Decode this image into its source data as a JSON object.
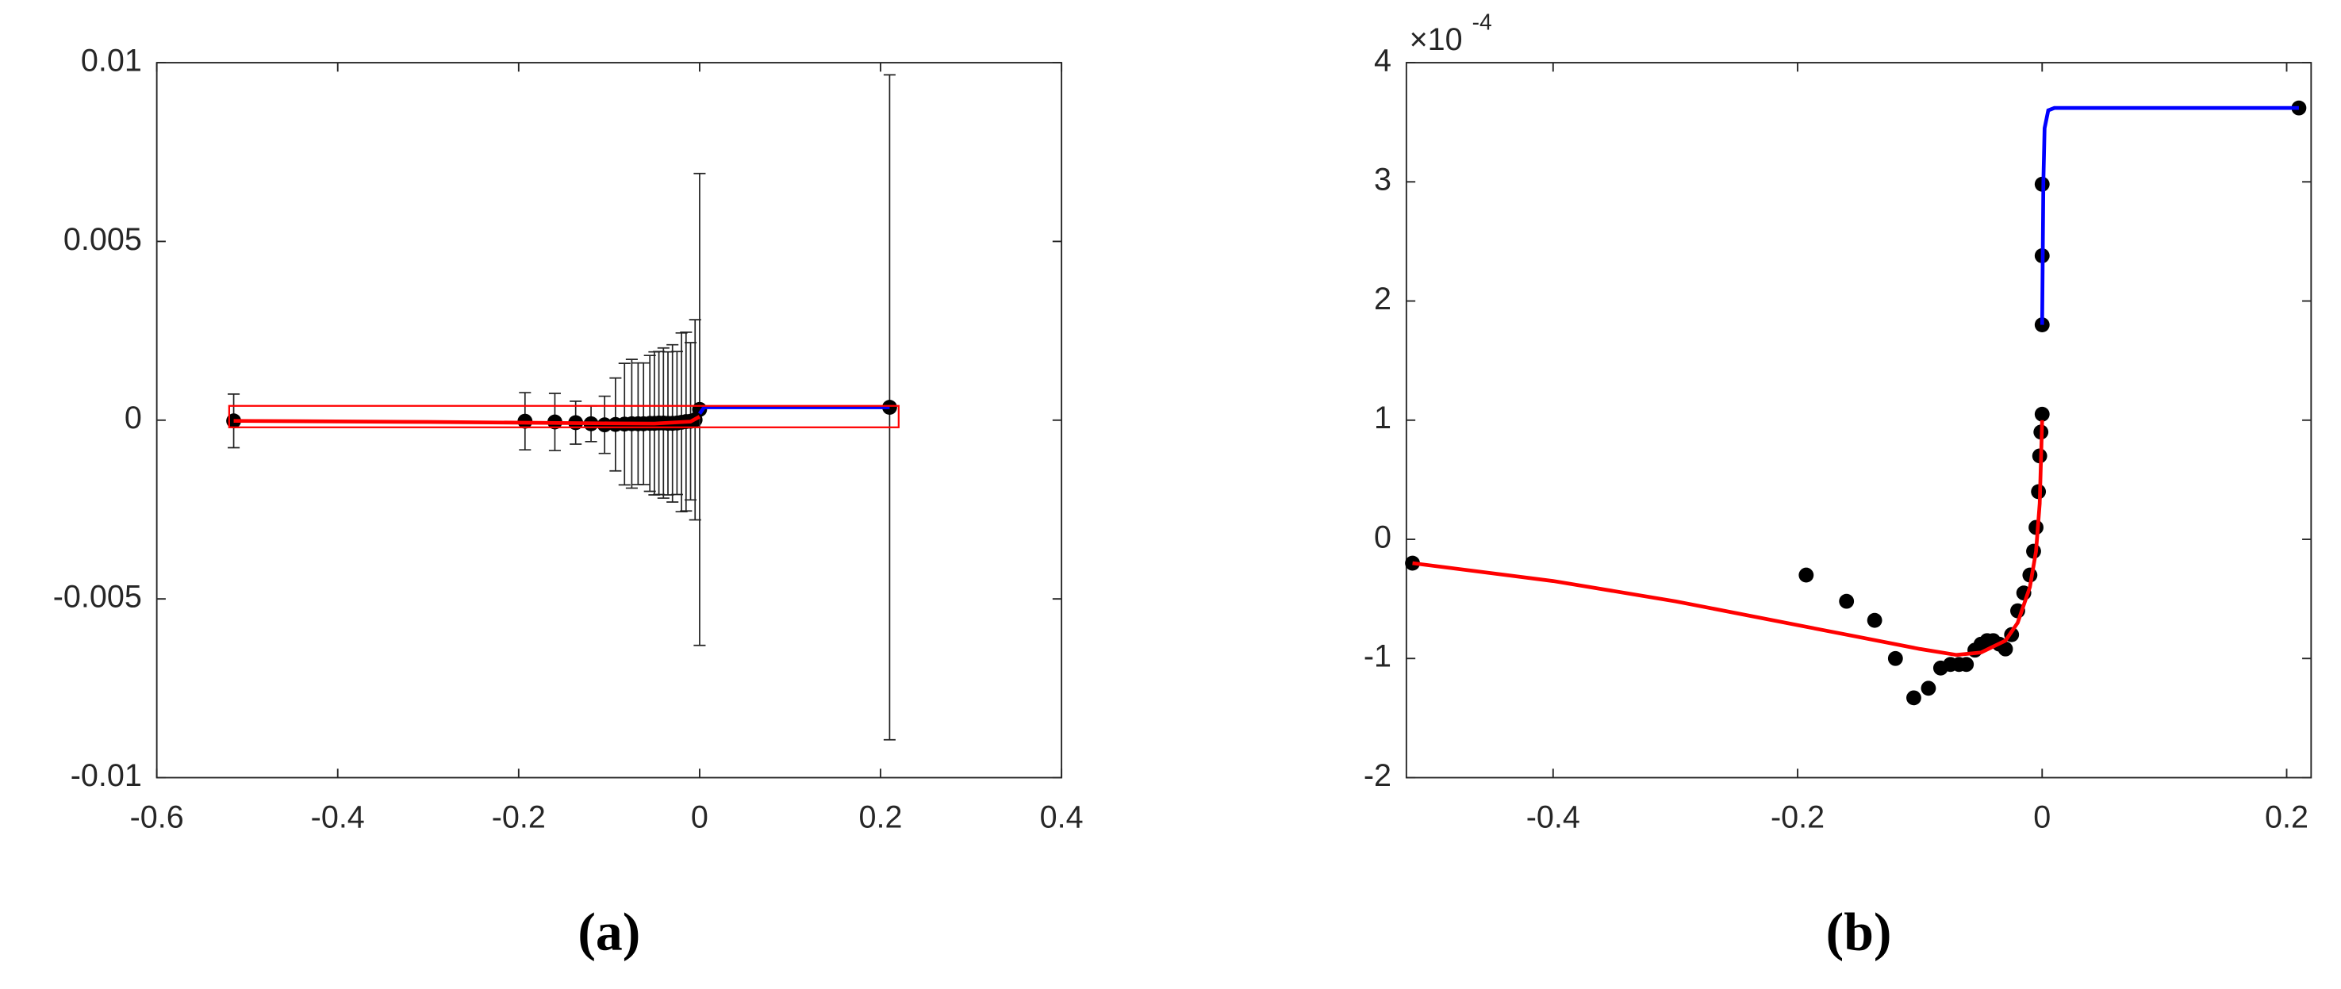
{
  "chart_data": [
    {
      "type": "scatter",
      "caption": "(a)",
      "xlim": [
        -0.6,
        0.4
      ],
      "ylim": [
        -0.01,
        0.01
      ],
      "xticks": [
        -0.6,
        -0.4,
        -0.2,
        0,
        0.2,
        0.4
      ],
      "yticks": [
        -0.01,
        -0.005,
        0,
        0.005,
        0.01
      ],
      "series": [
        {
          "type": "scatter",
          "color": "#000000",
          "x": [
            -0.515,
            -0.193,
            -0.16,
            -0.137,
            -0.12,
            -0.105,
            -0.093,
            -0.083,
            -0.075,
            -0.068,
            -0.062,
            -0.055,
            -0.05,
            -0.045,
            -0.04,
            -0.035,
            -0.03,
            -0.025,
            -0.02,
            -0.015,
            -0.01,
            -0.005,
            0,
            0.21
          ],
          "values": [
            -2e-05,
            -3e-05,
            -5e-05,
            -7e-05,
            -0.0001,
            -0.00013,
            -0.00012,
            -0.00011,
            -0.0001,
            -0.0001,
            -0.0001,
            -9e-05,
            -9e-05,
            -8e-05,
            -8e-05,
            -9e-05,
            -9e-05,
            -8e-05,
            -6e-05,
            -4e-05,
            -3e-05,
            1e-05,
            0.0003,
            0.00036
          ],
          "errors": [
            0.00075,
            0.0008,
            0.0008,
            0.0006,
            0.0005,
            0.0008,
            0.0013,
            0.0017,
            0.0018,
            0.0017,
            0.0017,
            0.0019,
            0.002,
            0.002,
            0.0021,
            0.002,
            0.0022,
            0.002,
            0.0025,
            0.0025,
            0.0022,
            0.0028,
            0.0066,
            0.0093
          ]
        },
        {
          "type": "line",
          "color": "#ff0000",
          "x": [
            -0.515,
            -0.3,
            -0.1,
            -0.05,
            -0.01,
            0
          ],
          "values": [
            -2e-05,
            -5e-05,
            -9e-05,
            -9.5e-05,
            -4e-05,
            0.0001
          ]
        },
        {
          "type": "line",
          "color": "#0000ff",
          "x": [
            0,
            0.005,
            0.21
          ],
          "values": [
            0.00018,
            0.00036,
            0.00036
          ]
        }
      ],
      "zoom_box": {
        "xlim": [
          -0.52,
          0.22
        ],
        "ylim": [
          -0.0002,
          0.0004
        ],
        "color": "#ff0000"
      }
    },
    {
      "type": "scatter",
      "caption": "(b)",
      "xlim": [
        -0.52,
        0.22
      ],
      "ylim": [
        -2,
        4
      ],
      "xticks": [
        -0.4,
        -0.2,
        0,
        0.2
      ],
      "yticks": [
        -2,
        -1,
        0,
        1,
        2,
        3,
        4
      ],
      "y_multiplier": {
        "base": "×10",
        "exponent": "-4"
      },
      "series": [
        {
          "type": "scatter",
          "color": "#000000",
          "x": [
            -0.515,
            -0.193,
            -0.16,
            -0.137,
            -0.12,
            -0.105,
            -0.093,
            -0.083,
            -0.075,
            -0.068,
            -0.062,
            -0.055,
            -0.05,
            -0.045,
            -0.04,
            -0.035,
            -0.03,
            -0.025,
            -0.02,
            -0.015,
            -0.01,
            -0.007,
            -0.005,
            -0.003,
            -0.002,
            -0.001,
            0,
            0,
            0,
            0,
            0.21
          ],
          "values": [
            -0.2,
            -0.3,
            -0.52,
            -0.68,
            -1.0,
            -1.33,
            -1.25,
            -1.08,
            -1.05,
            -1.05,
            -1.05,
            -0.93,
            -0.88,
            -0.85,
            -0.85,
            -0.88,
            -0.92,
            -0.8,
            -0.6,
            -0.45,
            -0.3,
            -0.1,
            0.1,
            0.4,
            0.7,
            0.9,
            1.05,
            1.8,
            2.38,
            2.98,
            3.62
          ]
        },
        {
          "type": "line",
          "color": "#ff0000",
          "x": [
            -0.515,
            -0.4,
            -0.3,
            -0.2,
            -0.15,
            -0.1,
            -0.07,
            -0.05,
            -0.03,
            -0.02,
            -0.01,
            -0.005,
            -0.002,
            0
          ],
          "values": [
            -0.2,
            -0.35,
            -0.52,
            -0.72,
            -0.82,
            -0.92,
            -0.97,
            -0.95,
            -0.85,
            -0.7,
            -0.4,
            -0.1,
            0.3,
            1.0
          ]
        },
        {
          "type": "line",
          "color": "#0000ff",
          "x": [
            0,
            0.001,
            0.002,
            0.005,
            0.01,
            0.21
          ],
          "values": [
            1.8,
            3.0,
            3.45,
            3.6,
            3.62,
            3.62
          ]
        }
      ]
    }
  ]
}
